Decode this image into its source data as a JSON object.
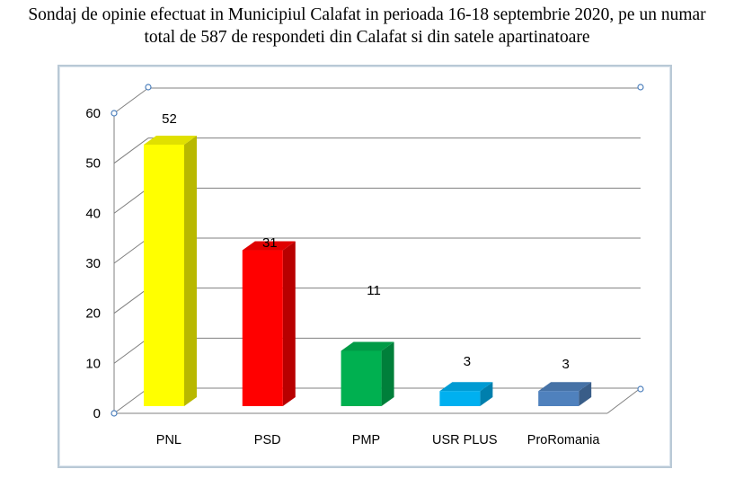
{
  "title": {
    "line1": "Sondaj de opinie efectuat in Municipiul Calafat in perioada 16-18 septembrie 2020, pe un numar",
    "line2": "total de 587 de respondeti din Calafat si din satele apartinatoare"
  },
  "colors": {
    "PNL": "#ffff00",
    "PSD": "#ff0000",
    "PMP": "#00b050",
    "USR PLUS": "#00b0f0",
    "ProRomania": "#4f81bd",
    "grid": "#808080",
    "frame": "#b9c9d6"
  },
  "chart_data": {
    "type": "bar",
    "style": "3d-column",
    "categories": [
      "PNL",
      "PSD",
      "PMP",
      "USR PLUS",
      "ProRomania"
    ],
    "values": [
      52,
      31,
      11,
      3,
      3
    ],
    "data_labels": [
      "52",
      "31",
      "11",
      "3",
      "3"
    ],
    "ylim": [
      0,
      60
    ],
    "yticks": [
      "0",
      "10",
      "20",
      "30",
      "40",
      "50",
      "60"
    ],
    "xlabel": "",
    "ylabel": "",
    "grid": true,
    "legend": "none"
  }
}
